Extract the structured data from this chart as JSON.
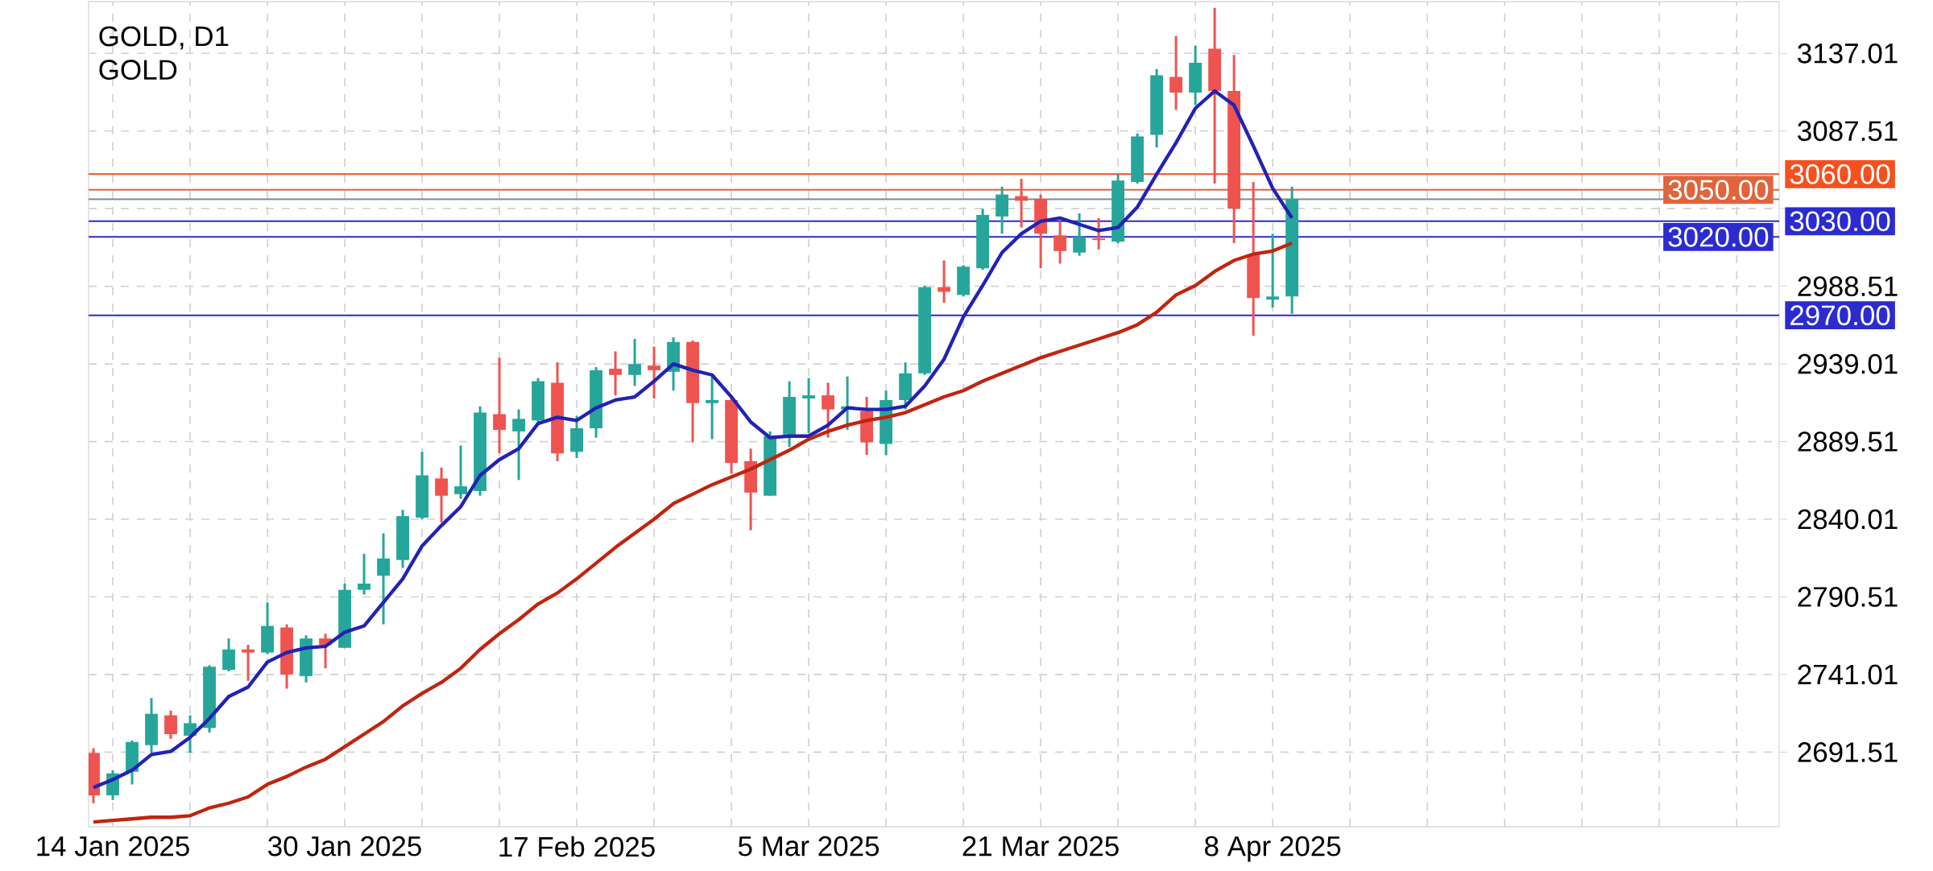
{
  "chart_data": {
    "type": "candlestick",
    "title": "GOLD, D1",
    "subtitle": "GOLD",
    "categories": [
      null,
      "14 Jan 2025",
      null,
      null,
      null,
      null,
      null,
      null,
      null,
      null,
      null,
      null,
      null,
      "30 Jan 2025",
      null,
      null,
      null,
      null,
      null,
      null,
      null,
      null,
      null,
      null,
      null,
      "17 Feb 2025",
      null,
      null,
      null,
      null,
      null,
      null,
      null,
      null,
      null,
      null,
      null,
      "5 Mar 2025",
      null,
      null,
      null,
      null,
      null,
      null,
      null,
      null,
      null,
      null,
      null,
      "21 Mar 2025",
      null,
      null,
      null,
      null,
      null,
      null,
      null,
      null,
      null,
      null,
      null,
      "8 Apr 2025",
      null
    ],
    "ohlc": [
      [
        2691,
        2694,
        2659,
        2664
      ],
      [
        2664,
        2680,
        2661,
        2678
      ],
      [
        2679,
        2699,
        2671,
        2698
      ],
      [
        2696,
        2726,
        2691,
        2716
      ],
      [
        2715,
        2718,
        2700,
        2703
      ],
      [
        2702,
        2715,
        2691,
        2710
      ],
      [
        2707,
        2747,
        2704,
        2746
      ],
      [
        2744,
        2764,
        2743,
        2757
      ],
      [
        2757,
        2760,
        2737,
        2755
      ],
      [
        2755,
        2787,
        2754,
        2772
      ],
      [
        2771,
        2773,
        2732,
        2741
      ],
      [
        2740,
        2766,
        2736,
        2764
      ],
      [
        2764,
        2767,
        2745,
        2760
      ],
      [
        2758,
        2799,
        2758,
        2795
      ],
      [
        2795,
        2818,
        2792,
        2799
      ],
      [
        2804,
        2831,
        2773,
        2815
      ],
      [
        2814,
        2846,
        2809,
        2842
      ],
      [
        2841,
        2883,
        2840,
        2868
      ],
      [
        2866,
        2873,
        2838,
        2855
      ],
      [
        2856,
        2887,
        2853,
        2861
      ],
      [
        2858,
        2912,
        2855,
        2908
      ],
      [
        2907,
        2943,
        2882,
        2897
      ],
      [
        2896,
        2910,
        2865,
        2904
      ],
      [
        2903,
        2930,
        2902,
        2928
      ],
      [
        2927,
        2940,
        2877,
        2882
      ],
      [
        2883,
        2906,
        2879,
        2898
      ],
      [
        2898,
        2937,
        2892,
        2935
      ],
      [
        2936,
        2947,
        2919,
        2932
      ],
      [
        2932,
        2955,
        2925,
        2939
      ],
      [
        2938,
        2950,
        2917,
        2935
      ],
      [
        2934,
        2956,
        2922,
        2953
      ],
      [
        2953,
        2954,
        2889,
        2914
      ],
      [
        2914,
        2931,
        2891,
        2916
      ],
      [
        2916,
        2918,
        2869,
        2876
      ],
      [
        2877,
        2885,
        2833,
        2857
      ],
      [
        2855,
        2896,
        2855,
        2893
      ],
      [
        2894,
        2928,
        2886,
        2918
      ],
      [
        2917,
        2930,
        2895,
        2919
      ],
      [
        2919,
        2927,
        2892,
        2910
      ],
      [
        2910,
        2931,
        2897,
        2912
      ],
      [
        2909,
        2918,
        2881,
        2889
      ],
      [
        2888,
        2922,
        2881,
        2916
      ],
      [
        2916,
        2940,
        2910,
        2933
      ],
      [
        2933,
        2989,
        2932,
        2988
      ],
      [
        2988,
        3005,
        2978,
        2985
      ],
      [
        2983,
        3002,
        2982,
        3001
      ],
      [
        3000,
        3038,
        2999,
        3034
      ],
      [
        3033,
        3052,
        3022,
        3047
      ],
      [
        3046,
        3057,
        3026,
        3043
      ],
      [
        3044,
        3047,
        3000,
        3022
      ],
      [
        3021,
        3030,
        3003,
        3011
      ],
      [
        3010,
        3035,
        3008,
        3020
      ],
      [
        3019,
        3032,
        3012,
        3018
      ],
      [
        3017,
        3060,
        3016,
        3056
      ],
      [
        3055,
        3086,
        3054,
        3084
      ],
      [
        3085,
        3127,
        3077,
        3123
      ],
      [
        3122,
        3148,
        3101,
        3112
      ],
      [
        3112,
        3142,
        3104,
        3131
      ],
      [
        3140,
        3166,
        3054,
        3113
      ],
      [
        3113,
        3136,
        3016,
        3038
      ],
      [
        3009,
        3055,
        2957,
        2981
      ],
      [
        2980,
        3022,
        2975,
        2982
      ],
      [
        2982,
        3052,
        2971,
        3044
      ]
    ],
    "colors": [
      "#ef5350",
      "#26a69a",
      "#26a69a",
      "#26a69a",
      "#ef5350",
      "#26a69a",
      "#26a69a",
      "#26a69a",
      "#ef5350",
      "#26a69a",
      "#ef5350",
      "#26a69a",
      "#ef5350",
      "#26a69a",
      "#26a69a",
      "#26a69a",
      "#26a69a",
      "#26a69a",
      "#ef5350",
      "#26a69a",
      "#26a69a",
      "#ef5350",
      "#26a69a",
      "#26a69a",
      "#ef5350",
      "#26a69a",
      "#26a69a",
      "#ef5350",
      "#26a69a",
      "#ef5350",
      "#26a69a",
      "#ef5350",
      "#26a69a",
      "#ef5350",
      "#ef5350",
      "#26a69a",
      "#26a69a",
      "#26a69a",
      "#ef5350",
      "#26a69a",
      "#ef5350",
      "#26a69a",
      "#26a69a",
      "#26a69a",
      "#ef5350",
      "#26a69a",
      "#26a69a",
      "#26a69a",
      "#ef5350",
      "#ef5350",
      "#ef5350",
      "#26a69a",
      "#ef5350",
      "#26a69a",
      "#26a69a",
      "#26a69a",
      "#ef5350",
      "#26a69a",
      "#ef5350",
      "#ef5350",
      "#ef5350",
      "#26a69a",
      "#26a69a"
    ],
    "series": [
      {
        "type": "line",
        "color": "#2222b4",
        "values": [
          2669,
          2674,
          2680,
          2690,
          2692,
          2701,
          2713,
          2727,
          2733,
          2749,
          2755,
          2758,
          2759,
          2768,
          2772,
          2787,
          2802,
          2823,
          2836,
          2848,
          2868,
          2878,
          2885,
          2901,
          2905,
          2903,
          2911,
          2916,
          2918,
          2928,
          2939,
          2935,
          2932,
          2918,
          2902,
          2892,
          2893,
          2893,
          2900,
          2911,
          2910,
          2910,
          2912,
          2925,
          2942,
          2969,
          2989,
          3010,
          3022,
          3030,
          3032,
          3028,
          3024,
          3026,
          3039,
          3060,
          3080,
          3102,
          3113,
          3104,
          3078,
          3051,
          3032
        ]
      },
      {
        "type": "line",
        "color": "#c0250f",
        "values": [
          2647,
          2648,
          2649,
          2650,
          2650,
          2651,
          2656,
          2659,
          2663,
          2671,
          2676,
          2682,
          2687,
          2695,
          2703,
          2711,
          2721,
          2729,
          2736,
          2745,
          2757,
          2767,
          2776,
          2786,
          2793,
          2802,
          2812,
          2822,
          2831,
          2840,
          2850,
          2856,
          2862,
          2867,
          2872,
          2878,
          2884,
          2891,
          2896,
          2900,
          2903,
          2905,
          2908,
          2913,
          2918,
          2922,
          2928,
          2933,
          2938,
          2943,
          2947,
          2951,
          2955,
          2959,
          2964,
          2972,
          2983,
          2989,
          2998,
          3005,
          3009,
          3011,
          3016
        ]
      }
    ],
    "ylim": [
      2644,
      3170
    ],
    "yticks": [
      2691.51,
      2741.01,
      2790.51,
      2840.01,
      2889.51,
      2939.01,
      2988.51,
      {
        "value": 3038.01,
        "label": null
      },
      3087.51,
      3137.01
    ],
    "ref_lines": [
      {
        "axis": "y",
        "value": 3060,
        "label": "3060.00",
        "color": "#f4511e"
      },
      {
        "axis": "y",
        "value": 3050,
        "label": "3050.00",
        "color": "#e0643c"
      },
      {
        "axis": "y",
        "value": 3044,
        "color": "#7a8a8a"
      },
      {
        "axis": "y",
        "value": 3030,
        "label": "3030.00",
        "color": "#2b2bd0"
      },
      {
        "axis": "y",
        "value": 3020,
        "label": "3020.00",
        "color": "#2b2bd0"
      },
      {
        "axis": "y",
        "value": 2970,
        "label": "2970.00",
        "color": "#2b2bd0"
      }
    ],
    "grid": true
  }
}
